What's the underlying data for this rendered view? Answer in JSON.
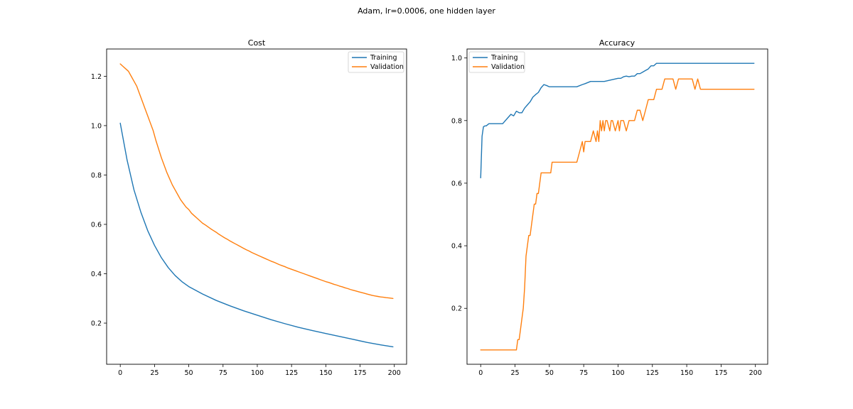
{
  "figure": {
    "suptitle": "Adam, lr=0.0006, one hidden layer"
  },
  "colors": {
    "training": "#1f77b4",
    "validation": "#ff7f0e"
  },
  "chart_data": [
    {
      "type": "line",
      "title": "Cost",
      "xlabel": "",
      "ylabel": "",
      "xlim": [
        -9.95,
        208.95
      ],
      "ylim": [
        0.0333,
        1.3104
      ],
      "xticks": [
        0,
        25,
        50,
        75,
        100,
        125,
        150,
        175,
        200
      ],
      "yticks": [
        0.2,
        0.4,
        0.6,
        0.8,
        1.0,
        1.2
      ],
      "ytick_labels": [
        "0.2",
        "0.4",
        "0.6",
        "0.8",
        "1.0",
        "1.2"
      ],
      "grid": false,
      "legend": {
        "placement": "top-right",
        "entries": [
          "Training",
          "Validation"
        ]
      },
      "series": [
        {
          "name": "Training",
          "x": [
            0,
            5,
            10,
            15,
            20,
            25,
            30,
            35,
            40,
            45,
            50,
            60,
            70,
            80,
            90,
            100,
            110,
            120,
            130,
            140,
            150,
            160,
            170,
            180,
            190,
            199
          ],
          "y": [
            1.01,
            0.86,
            0.74,
            0.65,
            0.575,
            0.515,
            0.465,
            0.425,
            0.393,
            0.368,
            0.348,
            0.318,
            0.292,
            0.27,
            0.25,
            0.232,
            0.214,
            0.198,
            0.183,
            0.17,
            0.158,
            0.146,
            0.134,
            0.122,
            0.112,
            0.104
          ]
        },
        {
          "name": "Validation",
          "x": [
            0,
            2,
            4,
            6,
            8,
            10,
            12,
            14,
            16,
            18,
            20,
            22,
            24,
            26,
            28,
            30,
            32,
            34,
            36,
            38,
            40,
            42,
            44,
            46,
            48,
            50,
            52,
            54,
            56,
            58,
            60,
            62,
            64,
            66,
            68,
            70,
            72,
            74,
            76,
            78,
            80,
            82,
            84,
            86,
            88,
            90,
            92,
            94,
            96,
            98,
            100,
            102,
            104,
            106,
            108,
            110,
            112,
            114,
            116,
            118,
            120,
            122,
            124,
            126,
            128,
            130,
            132,
            134,
            136,
            138,
            140,
            142,
            144,
            146,
            148,
            150,
            152,
            154,
            156,
            158,
            160,
            162,
            164,
            166,
            168,
            170,
            172,
            174,
            176,
            178,
            180,
            182,
            184,
            186,
            188,
            190,
            192,
            194,
            196,
            199
          ],
          "y": [
            1.25,
            1.24,
            1.23,
            1.22,
            1.2,
            1.18,
            1.16,
            1.13,
            1.1,
            1.07,
            1.04,
            1.01,
            0.98,
            0.94,
            0.905,
            0.87,
            0.84,
            0.81,
            0.785,
            0.76,
            0.74,
            0.72,
            0.7,
            0.685,
            0.67,
            0.66,
            0.645,
            0.635,
            0.625,
            0.615,
            0.605,
            0.598,
            0.59,
            0.582,
            0.575,
            0.568,
            0.56,
            0.553,
            0.546,
            0.54,
            0.533,
            0.527,
            0.521,
            0.515,
            0.509,
            0.503,
            0.497,
            0.492,
            0.486,
            0.481,
            0.476,
            0.471,
            0.466,
            0.461,
            0.456,
            0.451,
            0.447,
            0.442,
            0.437,
            0.433,
            0.429,
            0.424,
            0.42,
            0.416,
            0.412,
            0.408,
            0.404,
            0.4,
            0.396,
            0.392,
            0.388,
            0.384,
            0.38,
            0.376,
            0.372,
            0.368,
            0.365,
            0.361,
            0.357,
            0.354,
            0.35,
            0.347,
            0.343,
            0.34,
            0.336,
            0.333,
            0.33,
            0.327,
            0.324,
            0.321,
            0.318,
            0.315,
            0.312,
            0.31,
            0.308,
            0.306,
            0.305,
            0.303,
            0.302,
            0.3
          ]
        }
      ]
    },
    {
      "type": "line",
      "title": "Accuracy",
      "xlabel": "",
      "ylabel": "",
      "xlim": [
        -9.95,
        208.95
      ],
      "ylim": [
        0.0213,
        1.0287
      ],
      "xticks": [
        0,
        25,
        50,
        75,
        100,
        125,
        150,
        175,
        200
      ],
      "yticks": [
        0.2,
        0.4,
        0.6,
        0.8,
        1.0
      ],
      "ytick_labels": [
        "0.2",
        "0.4",
        "0.6",
        "0.8",
        "1.0"
      ],
      "grid": false,
      "legend": {
        "placement": "top-left",
        "entries": [
          "Training",
          "Validation"
        ]
      },
      "series": [
        {
          "name": "Training",
          "x": [
            0,
            1,
            2,
            3,
            4,
            6,
            10,
            14,
            16,
            20,
            22,
            24,
            26,
            28,
            30,
            32,
            34,
            36,
            38,
            40,
            42,
            44,
            46,
            48,
            50,
            52,
            60,
            70,
            74,
            76,
            80,
            90,
            100,
            102,
            104,
            106,
            108,
            110,
            112,
            114,
            116,
            118,
            120,
            122,
            124,
            126,
            128,
            130,
            140,
            150,
            160,
            170,
            180,
            190,
            199
          ],
          "y": [
            0.617,
            0.75,
            0.78,
            0.783,
            0.783,
            0.79,
            0.79,
            0.79,
            0.79,
            0.81,
            0.82,
            0.815,
            0.83,
            0.825,
            0.825,
            0.84,
            0.85,
            0.86,
            0.875,
            0.883,
            0.89,
            0.905,
            0.915,
            0.912,
            0.908,
            0.908,
            0.908,
            0.908,
            0.915,
            0.918,
            0.925,
            0.925,
            0.935,
            0.935,
            0.94,
            0.942,
            0.94,
            0.942,
            0.942,
            0.95,
            0.95,
            0.955,
            0.96,
            0.965,
            0.975,
            0.975,
            0.983,
            0.983,
            0.983,
            0.983,
            0.983,
            0.983,
            0.983,
            0.983,
            0.983
          ]
        },
        {
          "name": "Validation",
          "x": [
            0,
            10,
            20,
            25,
            26,
            27,
            28,
            29,
            30,
            31,
            32,
            33,
            34,
            35,
            36,
            37,
            38,
            39,
            40,
            41,
            42,
            43,
            44,
            45,
            46,
            47,
            48,
            49,
            50,
            51,
            52,
            55,
            60,
            65,
            68,
            70,
            72,
            74,
            75,
            76,
            78,
            80,
            82,
            84,
            85,
            86,
            87,
            88,
            89,
            90,
            91,
            92,
            94,
            95,
            96,
            98,
            100,
            101,
            102,
            104,
            106,
            108,
            110,
            112,
            114,
            116,
            118,
            120,
            122,
            124,
            126,
            128,
            130,
            132,
            134,
            136,
            138,
            140,
            142,
            144,
            146,
            148,
            150,
            152,
            154,
            156,
            158,
            160,
            162,
            164,
            170,
            180,
            190,
            199
          ],
          "y": [
            0.067,
            0.067,
            0.067,
            0.067,
            0.067,
            0.1,
            0.1,
            0.133,
            0.167,
            0.2,
            0.267,
            0.367,
            0.4,
            0.433,
            0.433,
            0.467,
            0.5,
            0.533,
            0.533,
            0.567,
            0.567,
            0.6,
            0.633,
            0.633,
            0.633,
            0.633,
            0.633,
            0.633,
            0.633,
            0.633,
            0.667,
            0.667,
            0.667,
            0.667,
            0.667,
            0.667,
            0.7,
            0.733,
            0.7,
            0.733,
            0.733,
            0.733,
            0.767,
            0.733,
            0.767,
            0.733,
            0.8,
            0.767,
            0.8,
            0.767,
            0.8,
            0.8,
            0.767,
            0.8,
            0.8,
            0.767,
            0.8,
            0.767,
            0.8,
            0.8,
            0.767,
            0.8,
            0.8,
            0.8,
            0.833,
            0.833,
            0.8,
            0.833,
            0.867,
            0.867,
            0.867,
            0.9,
            0.9,
            0.9,
            0.933,
            0.933,
            0.933,
            0.933,
            0.9,
            0.933,
            0.933,
            0.933,
            0.933,
            0.933,
            0.933,
            0.9,
            0.933,
            0.9,
            0.9,
            0.9,
            0.9,
            0.9,
            0.9,
            0.9
          ]
        }
      ]
    }
  ]
}
